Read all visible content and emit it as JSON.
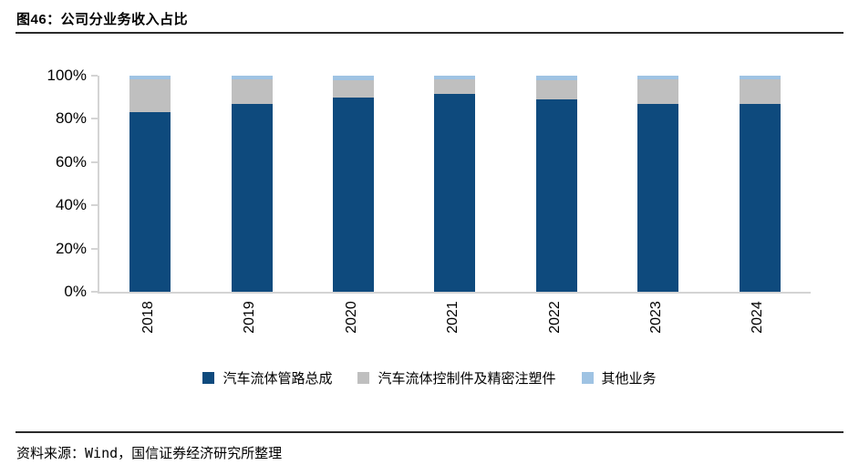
{
  "header": {
    "title": "图46：公司分业务收入占比"
  },
  "chart_data": {
    "type": "bar",
    "stacked": true,
    "title": "公司分业务收入占比",
    "categories": [
      "2018",
      "2019",
      "2020",
      "2021",
      "2022",
      "2023",
      "2024"
    ],
    "series": [
      {
        "name": "汽车流体管路总成",
        "color": "#0e4a7d",
        "values": [
          83,
          87,
          90,
          91.5,
          89,
          87,
          87
        ]
      },
      {
        "name": "汽车流体控制件及精密注塑件",
        "color": "#bfbfbf",
        "values": [
          15.5,
          11.5,
          8,
          7,
          9,
          11.5,
          11.5
        ]
      },
      {
        "name": "其他业务",
        "color": "#9fc3e3",
        "values": [
          1.5,
          1.5,
          2,
          1.5,
          2,
          1.5,
          1.5
        ]
      }
    ],
    "y_ticks": [
      "0%",
      "20%",
      "40%",
      "60%",
      "80%",
      "100%"
    ],
    "ylim": [
      0,
      100
    ],
    "unit": "%",
    "grid": false,
    "legend_position": "bottom",
    "axis_color": "#d4d4d4"
  },
  "footer": {
    "prefix": "资料来源：",
    "source": "Wind",
    "suffix": "，国信证券经济研究所整理"
  }
}
